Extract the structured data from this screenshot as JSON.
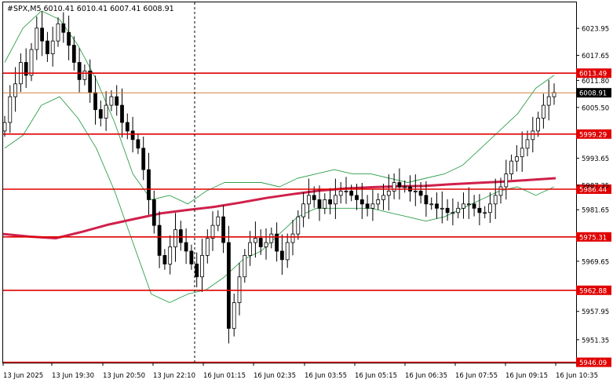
{
  "chart_header": {
    "symbol_line": "#SPX,M5  6010.41 6010.41 6007.41 6008.91"
  },
  "colors": {
    "background": "#ffffff",
    "frame": "#000000",
    "candle": "#000000",
    "level_line": "#e00000",
    "moving_average": "#d0204a",
    "bollinger": "#2e9e4a",
    "last_price_line": "#d08040",
    "vertical_marker": "#000000",
    "label_text": "#ffffff"
  },
  "chart_data": {
    "type": "candlestick",
    "symbol": "#SPX",
    "timeframe": "M5",
    "last_ohlc": {
      "open": 6010.41,
      "high": 6010.41,
      "low": 6007.41,
      "close": 6008.91
    },
    "ylim": [
      5946.0,
      6030.0
    ],
    "y_ticks": [
      "6023.95",
      "6017.65",
      "6011.80",
      "6005.50",
      "5993.65",
      "5987.35",
      "5981.65",
      "5969.65",
      "5957.95",
      "5951.35"
    ],
    "x_ticks": [
      "13 Jun 2025",
      "13 Jun 19:30",
      "13 Jun 20:50",
      "13 Jun 22:10",
      "16 Jun 01:15",
      "16 Jun 02:35",
      "16 Jun 03:55",
      "16 Jun 05:15",
      "16 Jun 06:35",
      "16 Jun 07:55",
      "16 Jun 09:15",
      "16 Jun 10:35"
    ],
    "levels": [
      6013.49,
      5999.29,
      5986.44,
      5975.31,
      5962.88,
      5946.09
    ],
    "level_labels": [
      "6013.49",
      "5999.29",
      "5986.44",
      "5975.31",
      "5962.88",
      "5946.09"
    ],
    "current_price": 6008.91,
    "current_price_label": "6008.91",
    "grid": false,
    "closes": [
      6002,
      6008,
      6011,
      6016,
      6013,
      6019,
      6024,
      6021,
      6018,
      6021,
      6025,
      6023,
      6020,
      6016,
      6012,
      6014,
      6009,
      6005,
      6003,
      6006,
      6008,
      6006,
      6002,
      6000,
      5998,
      5996,
      5991,
      5984,
      5978,
      5971,
      5969,
      5973,
      5977,
      5974,
      5972,
      5969,
      5966,
      5971,
      5975,
      5978,
      5980,
      5974,
      5954,
      5960,
      5966,
      5971,
      5974,
      5975,
      5973,
      5974,
      5976,
      5972,
      5970,
      5974,
      5976,
      5980,
      5983,
      5985,
      5984,
      5982,
      5984,
      5983,
      5985,
      5986,
      5986,
      5985,
      5984,
      5983,
      5982,
      5983,
      5984,
      5985,
      5986,
      5988,
      5987,
      5987,
      5986,
      5986,
      5985,
      5983,
      5983,
      5982,
      5982,
      5981,
      5981,
      5982,
      5983,
      5983,
      5982,
      5981,
      5981,
      5983,
      5985,
      5987,
      5990,
      5993,
      5994,
      5996,
      5998,
      6000,
      6003,
      6006,
      6008,
      6009
    ],
    "moving_average": [
      5976.0,
      5975.4,
      5975.0,
      5976.5,
      5978.2,
      5979.5,
      5980.8,
      5981.6,
      5982.3,
      5983.3,
      5984.4,
      5985.3,
      5986.1,
      5986.6,
      5986.9,
      5987.1,
      5987.2,
      5987.6,
      5987.9,
      5988.2,
      5988.6,
      5989.0
    ],
    "bollinger_upper": [
      6016,
      6024,
      6028,
      6026,
      6020,
      6012,
      6002,
      5990,
      5984,
      5985,
      5983,
      5986,
      5988,
      5988,
      5988,
      5987,
      5989,
      5990,
      5991,
      5990,
      5990,
      5989,
      5988,
      5989,
      5990,
      5992,
      5996,
      6000,
      6004,
      6010,
      6013
    ],
    "bollinger_lower": [
      5996,
      5999,
      6006,
      6008,
      6003,
      5996,
      5986,
      5974,
      5962,
      5960,
      5962,
      5963,
      5966,
      5970,
      5972,
      5976,
      5980,
      5982,
      5982,
      5982,
      5982,
      5981,
      5980,
      5979,
      5980,
      5982,
      5984,
      5986,
      5987,
      5985,
      5987
    ]
  }
}
